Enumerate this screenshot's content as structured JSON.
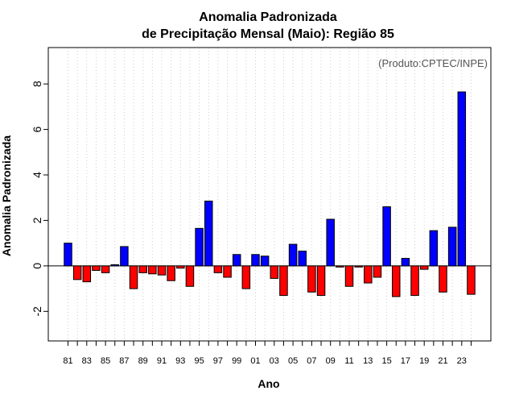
{
  "chart_data": {
    "type": "bar",
    "title": [
      "Anomalia Padronizada",
      "de Precipitação Mensal (Maio): Região 85"
    ],
    "xlabel": "Ano",
    "ylabel": "Anomalia Padronizada",
    "annotation": "(Produto:CPTEC/INPE)",
    "ylim": [
      -3.3,
      9.6
    ],
    "yticks": [
      -2,
      0,
      2,
      4,
      6,
      8
    ],
    "grid": "vertical dotted",
    "positive_color": "#0000FF",
    "negative_color": "#FF0000",
    "categories": [
      "81",
      "82",
      "83",
      "84",
      "85",
      "86",
      "87",
      "88",
      "89",
      "90",
      "91",
      "92",
      "93",
      "94",
      "95",
      "96",
      "97",
      "98",
      "99",
      "00",
      "01",
      "02",
      "03",
      "04",
      "05",
      "06",
      "07",
      "08",
      "09",
      "10",
      "11",
      "12",
      "13",
      "14",
      "15",
      "16",
      "17",
      "18",
      "19",
      "20",
      "21",
      "22",
      "23",
      "24"
    ],
    "xtick_labels": [
      "81",
      "83",
      "85",
      "87",
      "89",
      "91",
      "93",
      "95",
      "97",
      "99",
      "01",
      "03",
      "05",
      "07",
      "09",
      "11",
      "13",
      "15",
      "17",
      "19",
      "21",
      "23"
    ],
    "values": [
      1.0,
      -0.6,
      -0.7,
      -0.2,
      -0.3,
      0.05,
      0.85,
      -1.0,
      -0.3,
      -0.35,
      -0.4,
      -0.65,
      -0.1,
      -0.9,
      1.65,
      2.85,
      -0.3,
      -0.5,
      0.5,
      -1.0,
      0.5,
      0.43,
      -0.55,
      -1.3,
      0.95,
      0.65,
      -1.15,
      -1.3,
      2.05,
      -0.05,
      -0.9,
      -0.05,
      -0.75,
      -0.5,
      2.6,
      -1.35,
      0.33,
      -1.3,
      -0.15,
      1.55,
      -1.15,
      1.7,
      7.65,
      -1.25
    ]
  }
}
